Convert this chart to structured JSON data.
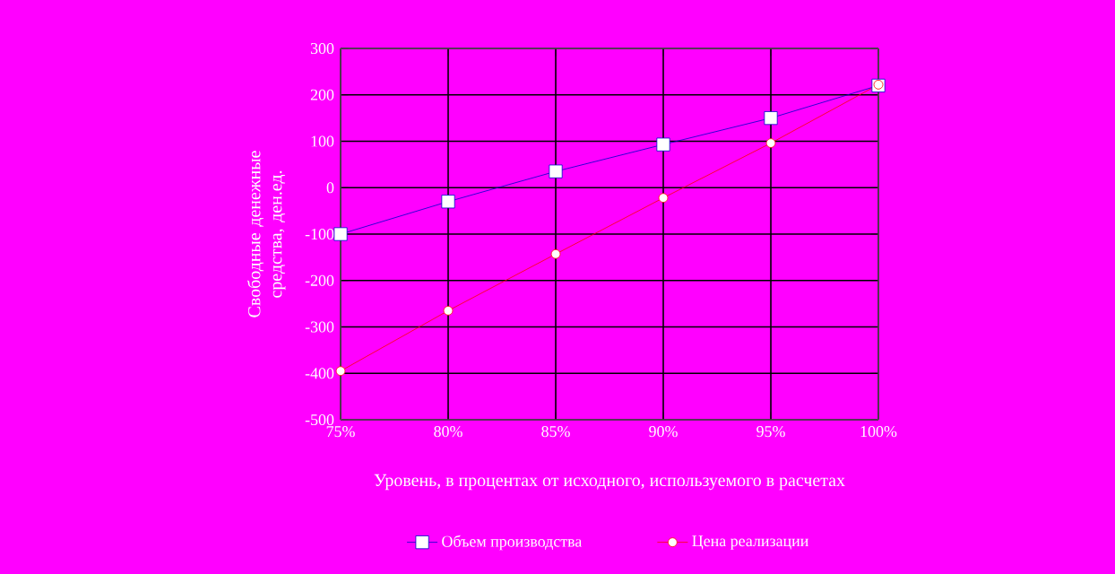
{
  "chart_data": {
    "type": "line",
    "xlabel": "Уровень, в процентах от исходного, используемого в расчетах",
    "ylabel": "Свободные денежные средства, ден.ед.",
    "categories": [
      "75%",
      "80%",
      "85%",
      "90%",
      "95%",
      "100%"
    ],
    "series": [
      {
        "name": "Объем производства",
        "color": "#0000cc",
        "marker": "square",
        "values": [
          -100,
          -30,
          35,
          93,
          150,
          220
        ]
      },
      {
        "name": "Цена реализации",
        "color": "#ff0000",
        "marker": "circle",
        "values": [
          -395,
          -265,
          -143,
          -22,
          96,
          222
        ]
      }
    ],
    "ylim": [
      -500,
      300
    ],
    "yticks": [
      -500,
      -400,
      -300,
      -200,
      -100,
      0,
      100,
      200,
      300
    ],
    "grid": true,
    "legend": "bottom",
    "line_style": "solid"
  }
}
